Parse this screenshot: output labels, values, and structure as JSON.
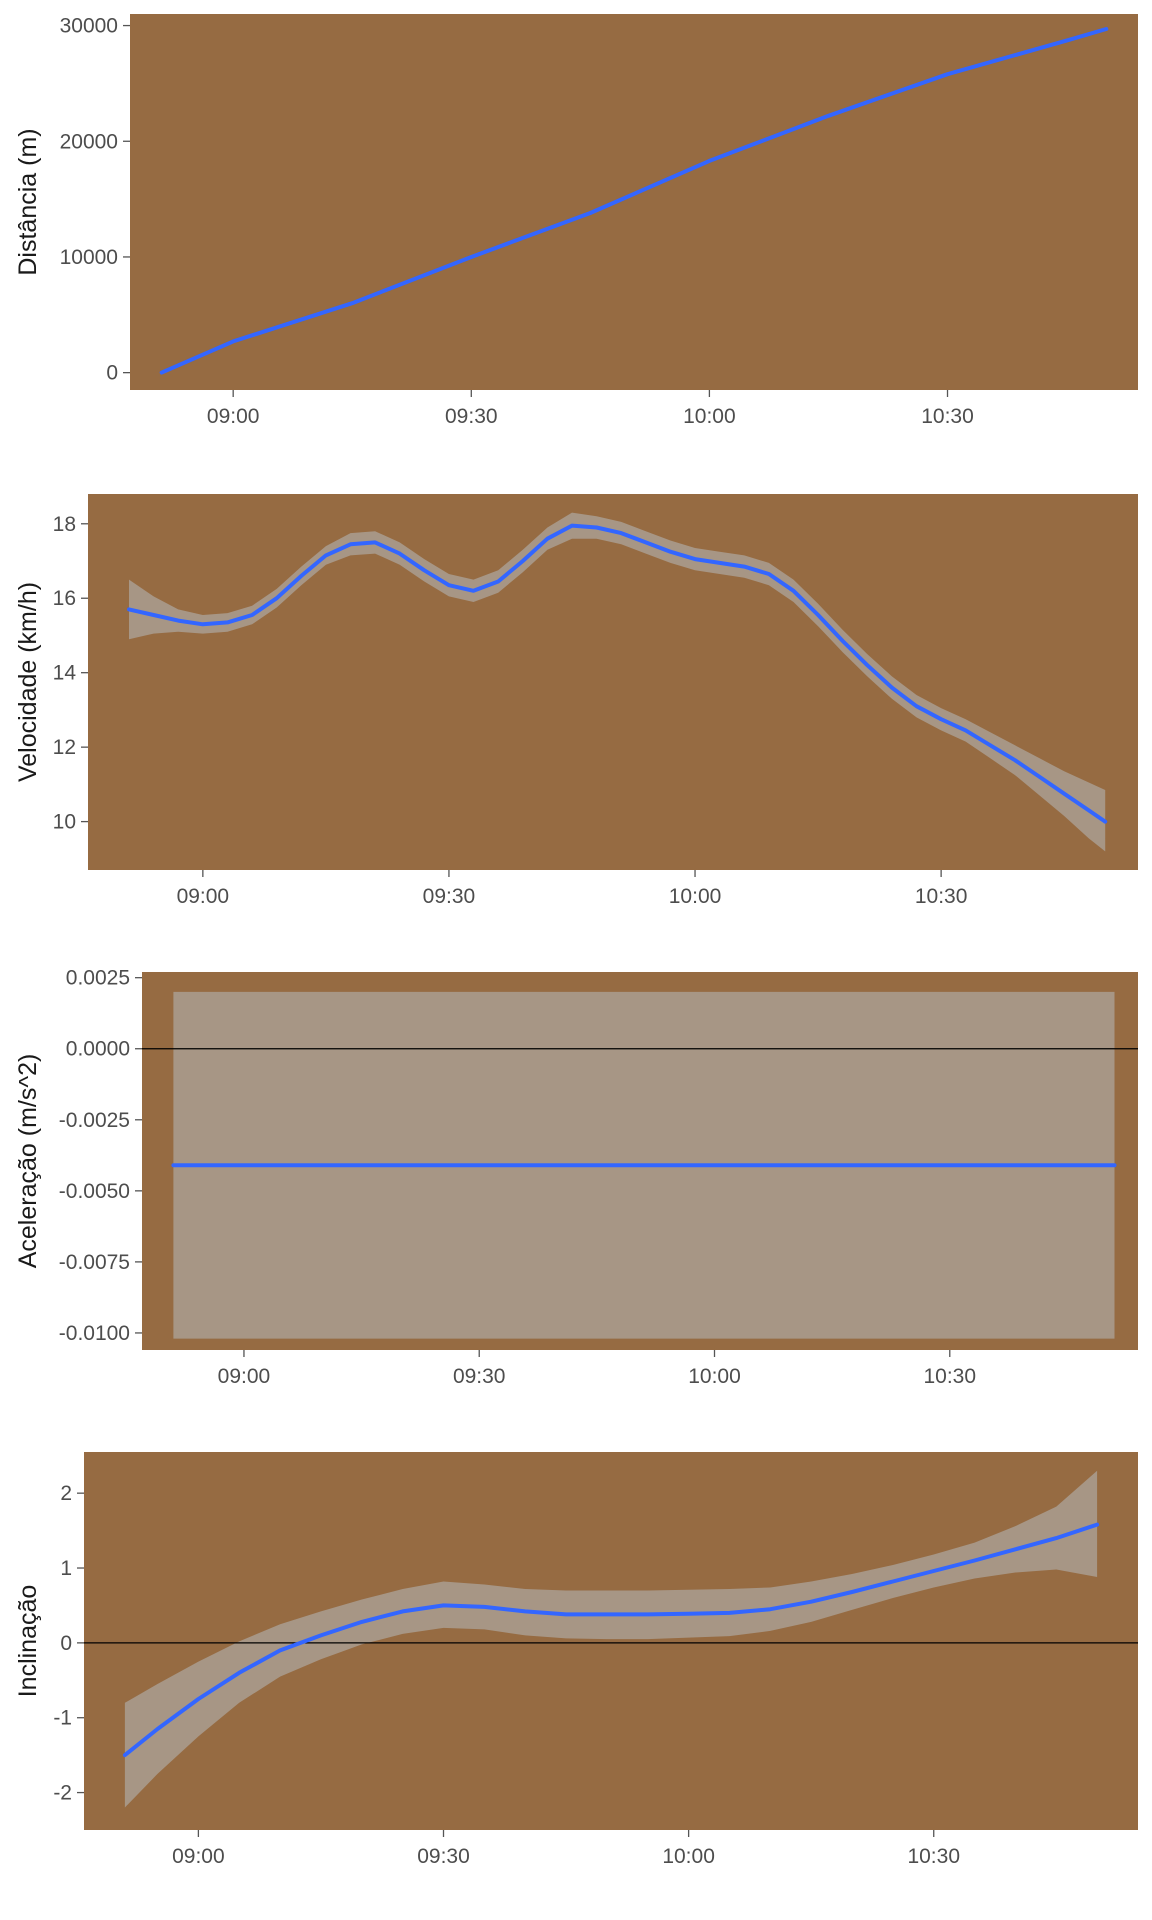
{
  "colors": {
    "panel_background": "#966b42",
    "ribbon": "#b2b2b2",
    "line": "#3366ff",
    "zero_line": "#000000",
    "tick_color": "#555555",
    "text": "#4d4d4d"
  },
  "chart_data": [
    {
      "type": "line",
      "title": "",
      "xlabel": "",
      "ylabel": "Distância (m)",
      "x_ticks": [
        "09:00",
        "09:30",
        "10:00",
        "10:30"
      ],
      "y_ticks": [
        "0",
        "10000",
        "20000",
        "30000"
      ],
      "y_tick_values": [
        0,
        10000,
        20000,
        30000
      ],
      "xlim": [
        "08:47",
        "10:54"
      ],
      "ylim": [
        -1500,
        31000
      ],
      "zero_line": false,
      "x": [
        "08:51",
        "09:00",
        "09:15",
        "09:30",
        "09:45",
        "10:00",
        "10:15",
        "10:30",
        "10:45",
        "10:50"
      ],
      "values": [
        0,
        2700,
        6000,
        10000,
        13800,
        18300,
        22200,
        25800,
        28700,
        29700
      ],
      "band_lower": null,
      "band_upper": null,
      "grid": false
    },
    {
      "type": "line",
      "title": "",
      "xlabel": "",
      "ylabel": "Velocidade (km/h)",
      "x_ticks": [
        "09:00",
        "09:30",
        "10:00",
        "10:30"
      ],
      "y_ticks": [
        "10",
        "12",
        "14",
        "16",
        "18"
      ],
      "y_tick_values": [
        10,
        12,
        14,
        16,
        18
      ],
      "xlim": [
        "08:46",
        "10:54"
      ],
      "ylim": [
        8.7,
        18.8
      ],
      "zero_line": false,
      "x": [
        "08:51",
        "08:54",
        "08:57",
        "09:00",
        "09:03",
        "09:06",
        "09:09",
        "09:12",
        "09:15",
        "09:18",
        "09:21",
        "09:24",
        "09:27",
        "09:30",
        "09:33",
        "09:36",
        "09:39",
        "09:42",
        "09:45",
        "09:48",
        "09:51",
        "09:54",
        "09:57",
        "10:00",
        "10:03",
        "10:06",
        "10:09",
        "10:12",
        "10:15",
        "10:18",
        "10:21",
        "10:24",
        "10:27",
        "10:30",
        "10:33",
        "10:36",
        "10:39",
        "10:42",
        "10:45",
        "10:48",
        "10:50"
      ],
      "values": [
        15.7,
        15.55,
        15.4,
        15.3,
        15.35,
        15.55,
        16.0,
        16.6,
        17.15,
        17.45,
        17.5,
        17.2,
        16.75,
        16.35,
        16.2,
        16.45,
        17.0,
        17.6,
        17.95,
        17.9,
        17.75,
        17.5,
        17.25,
        17.05,
        16.95,
        16.85,
        16.65,
        16.2,
        15.55,
        14.85,
        14.2,
        13.6,
        13.1,
        12.75,
        12.45,
        12.05,
        11.65,
        11.2,
        10.75,
        10.3,
        10.0
      ],
      "band_lower": [
        14.9,
        15.05,
        15.1,
        15.05,
        15.1,
        15.3,
        15.75,
        16.35,
        16.9,
        17.15,
        17.2,
        16.9,
        16.45,
        16.05,
        15.9,
        16.15,
        16.7,
        17.3,
        17.6,
        17.6,
        17.45,
        17.2,
        16.95,
        16.75,
        16.65,
        16.55,
        16.35,
        15.9,
        15.25,
        14.55,
        13.9,
        13.3,
        12.8,
        12.45,
        12.15,
        11.7,
        11.25,
        10.7,
        10.15,
        9.55,
        9.2
      ],
      "band_upper": [
        16.5,
        16.05,
        15.7,
        15.55,
        15.6,
        15.8,
        16.25,
        16.85,
        17.4,
        17.75,
        17.8,
        17.5,
        17.05,
        16.65,
        16.5,
        16.75,
        17.3,
        17.9,
        18.3,
        18.2,
        18.05,
        17.8,
        17.55,
        17.35,
        17.25,
        17.15,
        16.95,
        16.5,
        15.85,
        15.15,
        14.5,
        13.9,
        13.4,
        13.05,
        12.75,
        12.4,
        12.05,
        11.7,
        11.35,
        11.05,
        10.85
      ],
      "grid": false
    },
    {
      "type": "line",
      "title": "",
      "xlabel": "",
      "ylabel": "Aceleração (m/s^2)",
      "x_ticks": [
        "09:00",
        "09:30",
        "10:00",
        "10:30"
      ],
      "y_ticks": [
        "-0.0100",
        "-0.0075",
        "-0.0050",
        "-0.0025",
        "0.0000",
        "0.0025"
      ],
      "y_tick_values": [
        -0.01,
        -0.0075,
        -0.005,
        -0.0025,
        0.0,
        0.0025
      ],
      "xlim": [
        "08:47",
        "10:54"
      ],
      "ylim": [
        -0.0106,
        0.0027
      ],
      "zero_line": true,
      "x": [
        "08:51",
        "10:51"
      ],
      "values": [
        -0.0041,
        -0.0041
      ],
      "band_lower": [
        -0.0102,
        -0.0102
      ],
      "band_upper": [
        0.002,
        0.002
      ],
      "grid": false
    },
    {
      "type": "line",
      "title": "",
      "xlabel": "",
      "ylabel": "Inclinação",
      "x_ticks": [
        "09:00",
        "09:30",
        "10:00",
        "10:30"
      ],
      "y_ticks": [
        "-2",
        "-1",
        "0",
        "1",
        "2"
      ],
      "y_tick_values": [
        -2,
        -1,
        0,
        1,
        2
      ],
      "xlim": [
        "08:46",
        "10:55"
      ],
      "ylim": [
        -2.5,
        2.55
      ],
      "zero_line": true,
      "x": [
        "08:51",
        "08:55",
        "09:00",
        "09:05",
        "09:10",
        "09:15",
        "09:20",
        "09:25",
        "09:30",
        "09:35",
        "09:40",
        "09:45",
        "09:50",
        "09:55",
        "10:00",
        "10:05",
        "10:10",
        "10:15",
        "10:20",
        "10:25",
        "10:30",
        "10:35",
        "10:40",
        "10:45",
        "10:50"
      ],
      "values": [
        -1.5,
        -1.15,
        -0.75,
        -0.4,
        -0.1,
        0.1,
        0.28,
        0.42,
        0.5,
        0.48,
        0.42,
        0.38,
        0.38,
        0.38,
        0.39,
        0.4,
        0.45,
        0.55,
        0.68,
        0.82,
        0.96,
        1.1,
        1.25,
        1.4,
        1.58
      ],
      "band_lower": [
        -2.2,
        -1.75,
        -1.25,
        -0.8,
        -0.45,
        -0.22,
        -0.02,
        0.12,
        0.2,
        0.18,
        0.1,
        0.06,
        0.05,
        0.05,
        0.07,
        0.09,
        0.16,
        0.28,
        0.44,
        0.6,
        0.74,
        0.86,
        0.94,
        0.98,
        0.88
      ],
      "band_upper": [
        -0.8,
        -0.55,
        -0.25,
        0.02,
        0.25,
        0.42,
        0.58,
        0.72,
        0.82,
        0.78,
        0.72,
        0.7,
        0.7,
        0.7,
        0.71,
        0.72,
        0.74,
        0.82,
        0.92,
        1.04,
        1.18,
        1.34,
        1.56,
        1.82,
        2.3
      ],
      "grid": false
    }
  ]
}
